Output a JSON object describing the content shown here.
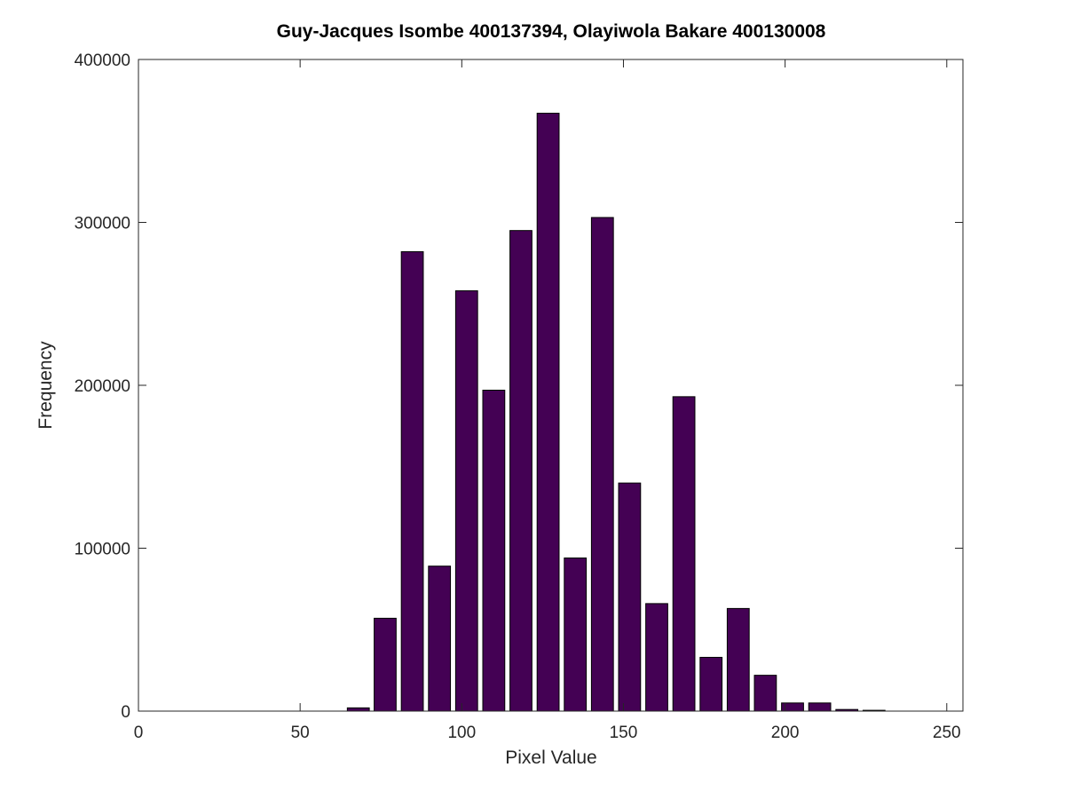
{
  "chart_data": {
    "type": "bar",
    "title": "Guy-Jacques Isombe 400137394, Olayiwola Bakare 400130008",
    "xlabel": "Pixel Value",
    "ylabel": "Frequency",
    "xlim": [
      0,
      255
    ],
    "ylim": [
      0,
      400000
    ],
    "xticks": [
      0,
      50,
      100,
      150,
      200,
      250
    ],
    "xtick_labels": [
      "0",
      "50",
      "100",
      "150",
      "200",
      "250"
    ],
    "yticks": [
      0,
      100000,
      200000,
      300000,
      400000
    ],
    "ytick_labels": [
      "0",
      "100000",
      "200000",
      "300000",
      "400000"
    ],
    "grid": false,
    "bar_color": "#440154",
    "edge_color": "#000000",
    "bins": [
      {
        "center": 4.2,
        "value": 0
      },
      {
        "center": 12.6,
        "value": 0
      },
      {
        "center": 21.0,
        "value": 0
      },
      {
        "center": 29.4,
        "value": 0
      },
      {
        "center": 37.8,
        "value": 0
      },
      {
        "center": 46.2,
        "value": 0
      },
      {
        "center": 54.6,
        "value": 0
      },
      {
        "center": 63.0,
        "value": 0
      },
      {
        "center": 68.0,
        "value": 2000
      },
      {
        "center": 76.3,
        "value": 57000
      },
      {
        "center": 84.7,
        "value": 282000
      },
      {
        "center": 93.1,
        "value": 89000
      },
      {
        "center": 101.5,
        "value": 258000
      },
      {
        "center": 109.9,
        "value": 197000
      },
      {
        "center": 118.3,
        "value": 295000
      },
      {
        "center": 126.7,
        "value": 367000
      },
      {
        "center": 135.1,
        "value": 94000
      },
      {
        "center": 143.5,
        "value": 303000
      },
      {
        "center": 151.9,
        "value": 140000
      },
      {
        "center": 160.3,
        "value": 66000
      },
      {
        "center": 168.7,
        "value": 193000
      },
      {
        "center": 177.1,
        "value": 33000
      },
      {
        "center": 185.5,
        "value": 63000
      },
      {
        "center": 193.9,
        "value": 22000
      },
      {
        "center": 202.3,
        "value": 5000
      },
      {
        "center": 210.7,
        "value": 5000
      },
      {
        "center": 219.1,
        "value": 1000
      },
      {
        "center": 227.5,
        "value": 500
      },
      {
        "center": 235.9,
        "value": 0
      },
      {
        "center": 244.3,
        "value": 0
      },
      {
        "center": 252.7,
        "value": 0
      }
    ],
    "bar_width": 6.8
  }
}
